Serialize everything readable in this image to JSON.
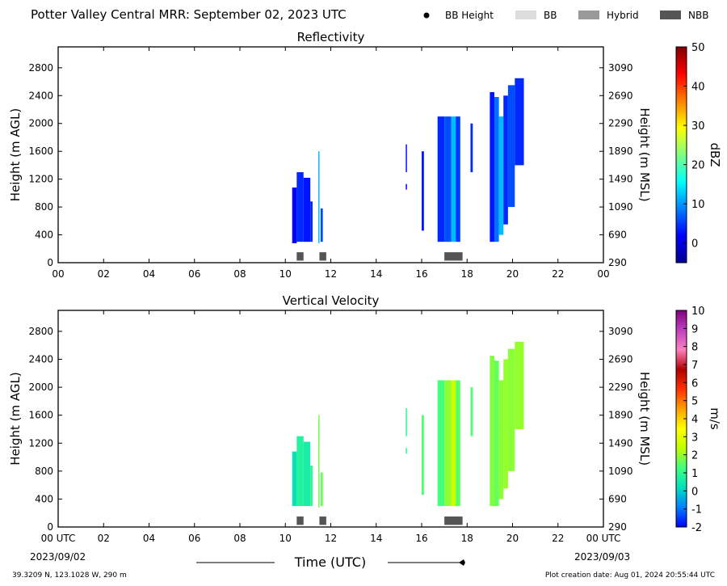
{
  "header": {
    "title": "Potter Valley Central MRR:  September 02, 2023 UTC",
    "legend": [
      {
        "label": "BB Height",
        "kind": "dot",
        "color": "#000000"
      },
      {
        "label": "BB",
        "kind": "box",
        "color": "#dddddd"
      },
      {
        "label": "Hybrid",
        "kind": "box",
        "color": "#999999"
      },
      {
        "label": "NBB",
        "kind": "box",
        "color": "#555555"
      }
    ]
  },
  "footer": {
    "coords": "39.3209 N, 123.1028 W, 290 m",
    "created": "Plot creation date: Aug 01, 2024 20:55:44 UTC",
    "xlabel": "Time (UTC)",
    "start_date": "2023/09/02",
    "end_date": "2023/09/03"
  },
  "chart_data": [
    {
      "type": "heatmap",
      "title": "Reflectivity",
      "xlabel": "",
      "ylabel": "Height (m AGL)",
      "y2label": "Height (m MSL)",
      "xlim": [
        0,
        24
      ],
      "ylim": [
        0,
        3100
      ],
      "xticks": [
        "00",
        "02",
        "04",
        "06",
        "08",
        "10",
        "12",
        "14",
        "16",
        "18",
        "20",
        "22",
        "00"
      ],
      "yticks": [
        0,
        400,
        800,
        1200,
        1600,
        2000,
        2400,
        2800
      ],
      "y2ticks": [
        290,
        690,
        1090,
        1490,
        1890,
        2290,
        2690,
        3090
      ],
      "colorbar": {
        "label": "dBZ",
        "min": -5,
        "max": 50,
        "ticks": [
          0,
          10,
          20,
          30,
          40,
          50
        ],
        "stops": [
          "#00008f",
          "#0000ff",
          "#0080ff",
          "#00ffff",
          "#80ff80",
          "#ffff00",
          "#ff8000",
          "#ff0000",
          "#800000"
        ]
      },
      "cells": [
        [
          10.3,
          10.5,
          280,
          1080,
          2
        ],
        [
          10.5,
          10.8,
          300,
          1300,
          4
        ],
        [
          10.8,
          11.1,
          300,
          1220,
          3
        ],
        [
          11.1,
          11.2,
          300,
          880,
          4
        ],
        [
          11.45,
          11.5,
          280,
          1600,
          12
        ],
        [
          11.55,
          11.65,
          300,
          780,
          6
        ],
        [
          15.3,
          15.35,
          1300,
          1700,
          3
        ],
        [
          15.3,
          15.35,
          1050,
          1130,
          2
        ],
        [
          16.0,
          16.1,
          460,
          1600,
          3
        ],
        [
          16.7,
          17.0,
          300,
          2100,
          4
        ],
        [
          17.0,
          17.3,
          300,
          2100,
          6
        ],
        [
          17.3,
          17.5,
          300,
          2100,
          12
        ],
        [
          17.5,
          17.7,
          300,
          2100,
          5
        ],
        [
          18.15,
          18.25,
          1300,
          2000,
          4
        ],
        [
          19.0,
          19.2,
          300,
          2450,
          3
        ],
        [
          19.2,
          19.4,
          300,
          2380,
          8
        ],
        [
          19.4,
          19.6,
          400,
          2100,
          12
        ],
        [
          19.6,
          19.8,
          550,
          2400,
          4
        ],
        [
          19.8,
          20.1,
          800,
          2550,
          6
        ],
        [
          20.1,
          20.5,
          1400,
          2650,
          4
        ]
      ]
    },
    {
      "type": "heatmap",
      "title": "Vertical Velocity",
      "xlabel": "Time (UTC)",
      "ylabel": "Height (m AGL)",
      "y2label": "Height (m MSL)",
      "xlim": [
        0,
        24
      ],
      "ylim": [
        0,
        3100
      ],
      "xticks": [
        "00 UTC",
        "02",
        "04",
        "06",
        "08",
        "10",
        "12",
        "14",
        "16",
        "18",
        "20",
        "22",
        "00 UTC"
      ],
      "yticks": [
        0,
        400,
        800,
        1200,
        1600,
        2000,
        2400,
        2800
      ],
      "y2ticks": [
        290,
        690,
        1090,
        1490,
        1890,
        2290,
        2690,
        3090
      ],
      "colorbar": {
        "label": "m/s",
        "min": -2,
        "max": 10,
        "ticks": [
          -2,
          -1,
          0,
          1,
          2,
          3,
          4,
          5,
          6,
          7,
          8,
          9,
          10
        ],
        "stops": [
          "#0000ff",
          "#0080ff",
          "#00e0c0",
          "#40ff80",
          "#c0ff00",
          "#ffff00",
          "#ffa000",
          "#ff3000",
          "#b00000",
          "#ff80c0",
          "#c040c0",
          "#800080"
        ]
      },
      "cells": [
        [
          10.3,
          10.5,
          300,
          1080,
          0.3
        ],
        [
          10.5,
          10.8,
          300,
          1300,
          0.8
        ],
        [
          10.8,
          11.1,
          300,
          1220,
          0.6
        ],
        [
          11.1,
          11.2,
          300,
          880,
          1.0
        ],
        [
          11.45,
          11.5,
          280,
          1600,
          1.7
        ],
        [
          11.55,
          11.65,
          300,
          780,
          1.6
        ],
        [
          15.3,
          15.35,
          1300,
          1700,
          1.0
        ],
        [
          15.3,
          15.35,
          1050,
          1130,
          1.0
        ],
        [
          16.0,
          16.1,
          460,
          1600,
          1.4
        ],
        [
          16.7,
          17.0,
          300,
          2100,
          1.3
        ],
        [
          17.0,
          17.3,
          300,
          2100,
          1.9
        ],
        [
          17.3,
          17.5,
          300,
          2100,
          2.6
        ],
        [
          17.5,
          17.7,
          300,
          2100,
          1.5
        ],
        [
          18.15,
          18.25,
          1300,
          2000,
          1.4
        ],
        [
          19.0,
          19.2,
          300,
          2450,
          1.8
        ],
        [
          19.2,
          19.4,
          300,
          2380,
          1.6
        ],
        [
          19.4,
          19.6,
          400,
          2100,
          1.9
        ],
        [
          19.6,
          19.8,
          550,
          2400,
          2.0
        ],
        [
          19.8,
          20.1,
          800,
          2550,
          1.9
        ],
        [
          20.1,
          20.5,
          1400,
          2650,
          2.0
        ]
      ]
    }
  ],
  "bb_indicators": [
    {
      "start": 10.5,
      "end": 10.8,
      "class": "NBB"
    },
    {
      "start": 11.5,
      "end": 11.8,
      "class": "NBB"
    },
    {
      "start": 17.0,
      "end": 17.8,
      "class": "NBB"
    }
  ]
}
